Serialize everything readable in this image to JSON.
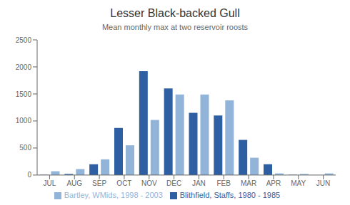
{
  "chart_data": {
    "type": "bar",
    "title": "Lesser Black-backed Gull",
    "subtitle": "Mean monthly max at two reservoir roosts",
    "categories": [
      "JUL",
      "AUG",
      "SEP",
      "OCT",
      "NOV",
      "DEC",
      "JAN",
      "FEB",
      "MAR",
      "APR",
      "MAY",
      "JUN"
    ],
    "series": [
      {
        "name": "Blithfield, Staffs, 1980 - 1985",
        "color": "#2E5FA3",
        "values": [
          5,
          20,
          200,
          870,
          1920,
          1600,
          1150,
          1100,
          650,
          200,
          5,
          0
        ]
      },
      {
        "name": "Bartley, WMids, 1998 - 2003",
        "color": "#92B4D8",
        "values": [
          70,
          110,
          290,
          550,
          1020,
          1490,
          1490,
          1380,
          320,
          30,
          20,
          30
        ]
      }
    ],
    "ylim": [
      0,
      2500
    ],
    "yticks": [
      0,
      500,
      1000,
      1500,
      2000,
      2500
    ],
    "grid": false,
    "legend": "bottom"
  }
}
